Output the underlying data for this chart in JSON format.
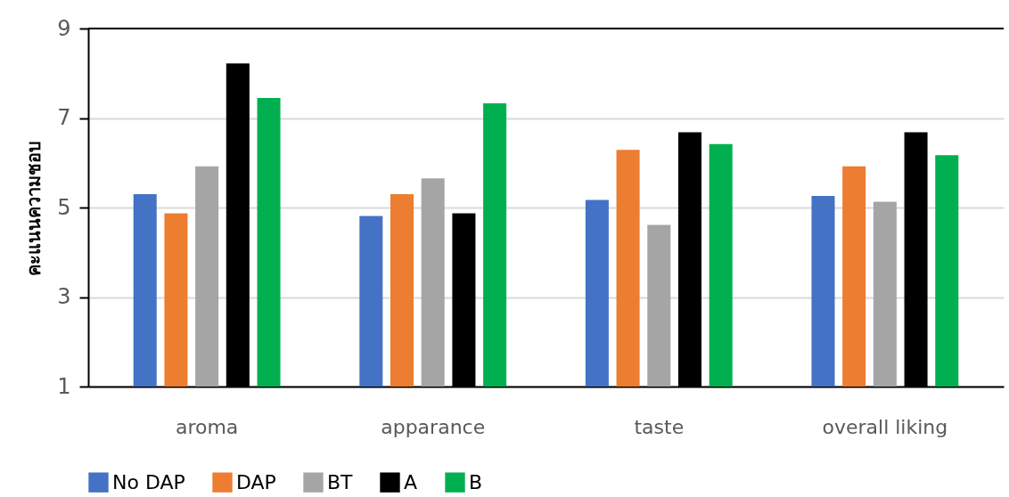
{
  "chart_data": {
    "type": "bar",
    "ylabel": "คะแนนความชอบ",
    "categories": [
      "aroma",
      "apparance",
      "taste",
      "overall liking"
    ],
    "series": [
      {
        "name": "No DAP",
        "color": "#4472c4",
        "values": [
          5.3,
          4.81,
          5.17,
          5.26
        ]
      },
      {
        "name": "DAP",
        "color": "#ed7d31",
        "values": [
          4.87,
          5.3,
          6.29,
          5.92
        ]
      },
      {
        "name": "BT",
        "color": "#a5a5a5",
        "values": [
          5.92,
          5.65,
          4.61,
          5.13
        ]
      },
      {
        "name": "A",
        "color": "#000000",
        "values": [
          8.22,
          4.87,
          6.68,
          6.68
        ]
      },
      {
        "name": "B",
        "color": "#00b050",
        "values": [
          7.45,
          7.33,
          6.42,
          6.17
        ]
      }
    ],
    "ylim": [
      1,
      9
    ],
    "yticks": [
      1,
      3,
      5,
      7,
      9
    ],
    "grid": "y",
    "legend": "bottom"
  }
}
